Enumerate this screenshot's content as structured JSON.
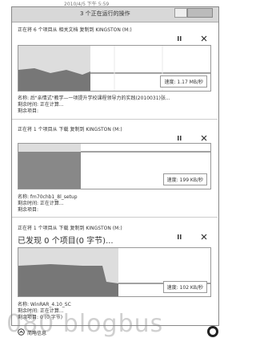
{
  "background": {
    "date": "2010/4/5 下午 5:59"
  },
  "window": {
    "title": "3 个正在运行的操作"
  },
  "operations": [
    {
      "header": "正在将 6 个项目从 相关文档 复制到 KINGSTON (M:)",
      "speed": "速度: 1.17 MB/秒",
      "name": "名称: 后\"亲情式\"教学—一项提升学校课程领导力的实践(2010031)张...",
      "time_left": "剩余时间: 正在计算...",
      "items_left": "剩余项目:"
    },
    {
      "header": "正在将 1 个项目从 下载 复制到 KINGSTON (M:)",
      "speed": "速度: 199 KB/秒",
      "name": "名称: fm70chb1_8l_setup",
      "time_left": "剩余时间: 正在计算...",
      "items_left": "剩余项目:"
    },
    {
      "header": "正在将 1 个项目从 下载 复制到 KINGSTON (M:)",
      "status": "已发现 0 个项目(0 字节)...",
      "speed": "速度: 102 KB/秒",
      "name": "名称: WinRAR_4.10_SC",
      "time_left": "剩余时间: 正在计算...",
      "items_left": "剩余项目: 0 (0 字节)"
    }
  ],
  "footer": {
    "toggle": "简略信息"
  },
  "watermark": "080 blogbus"
}
